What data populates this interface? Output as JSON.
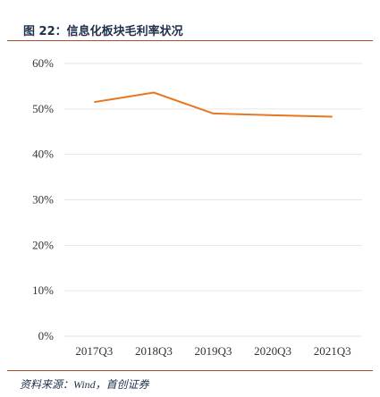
{
  "figure": {
    "title": "图 22：信息化板块毛利率状况",
    "source": "资料来源：Wind，首创证券"
  },
  "colors": {
    "line": "#e87722",
    "grid": "#e6e6e6",
    "rule": "#b24a2d",
    "title": "#1f2f4a"
  },
  "chart_data": {
    "type": "line",
    "title": "",
    "xlabel": "",
    "ylabel": "",
    "categories": [
      "2017Q3",
      "2018Q3",
      "2019Q3",
      "2020Q3",
      "2021Q3"
    ],
    "y_tick_labels": [
      "0%",
      "10%",
      "20%",
      "30%",
      "40%",
      "50%",
      "60%"
    ],
    "ylim": [
      0,
      60
    ],
    "grid": true,
    "legend": "none",
    "series": [
      {
        "values": [
          51.5,
          53.6,
          49.0,
          48.6,
          48.3
        ]
      }
    ]
  }
}
